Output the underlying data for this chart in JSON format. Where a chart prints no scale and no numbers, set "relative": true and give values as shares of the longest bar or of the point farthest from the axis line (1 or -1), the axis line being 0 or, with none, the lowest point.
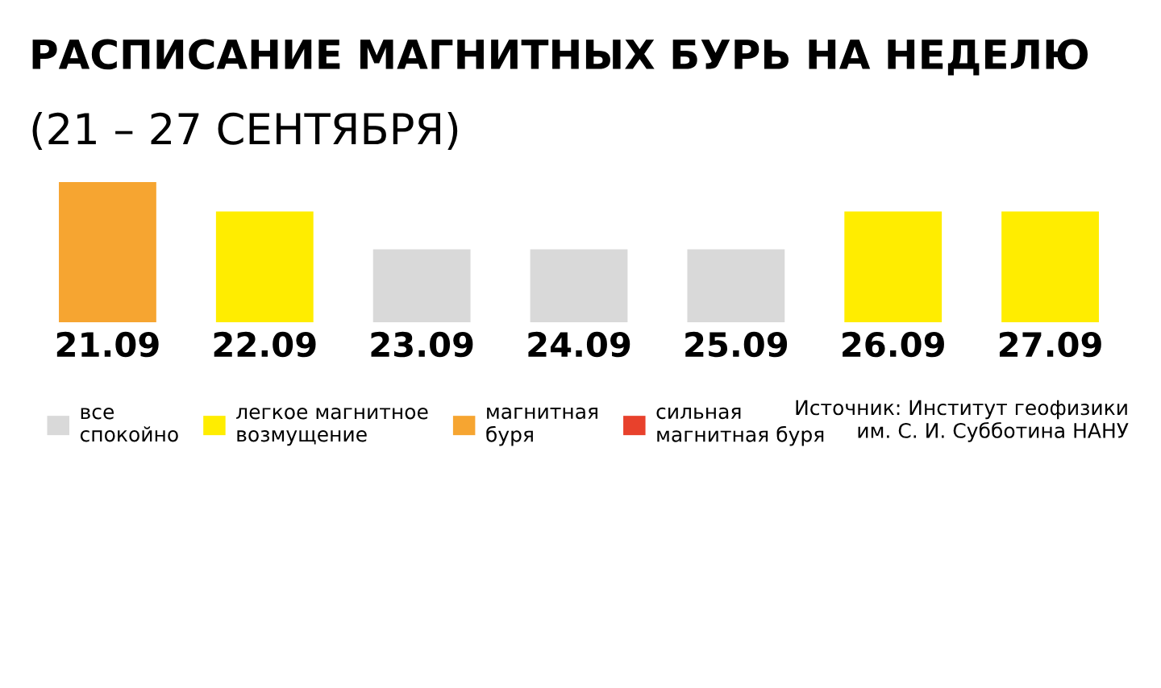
{
  "chart_data": {
    "type": "bar",
    "title": "РАСПИСАНИЕ МАГНИТНЫХ БУРЬ НА НЕДЕЛЮ",
    "subtitle": "(21 – 27 СЕНТЯБРЯ)",
    "categories": [
      "21.09",
      "22.09",
      "23.09",
      "24.09",
      "25.09",
      "26.09",
      "27.09"
    ],
    "relative": true,
    "legend": "bottom left",
    "grid": false,
    "series": [
      {
        "name": "все\nспокойно",
        "color": "#d9d9d9",
        "values": [
          null,
          null,
          0.52,
          0.52,
          0.52,
          null,
          null
        ]
      },
      {
        "name": "легкое магнитное\nвозмущение",
        "color": "#ffed00",
        "values": [
          null,
          0.79,
          null,
          null,
          null,
          0.79,
          0.79
        ]
      },
      {
        "name": "магнитная\nбуря",
        "color": "#f6a531",
        "values": [
          1,
          null,
          null,
          null,
          null,
          null,
          null
        ]
      },
      {
        "name": "сильная\nмагнитная буря",
        "color": "#e8412c",
        "values": [
          null,
          null,
          null,
          null,
          null,
          null,
          null
        ]
      }
    ],
    "annotations": [
      "Источник: Институт геофизики\nим. С. И. Субботина НАНУ"
    ]
  }
}
